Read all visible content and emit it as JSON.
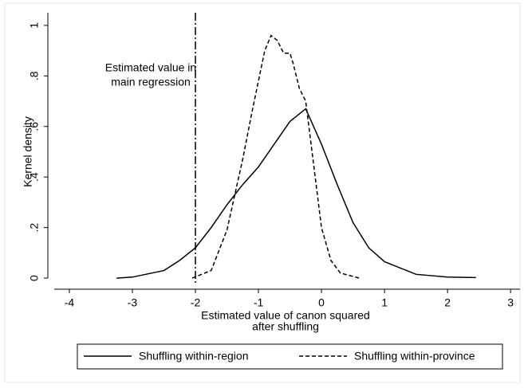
{
  "chart_data": {
    "type": "line",
    "ylabel": "Kernel density",
    "xlabel": [
      "Estimated value of canon squared",
      "after shuffling"
    ],
    "annotation": [
      "Estimated value in",
      "main regression"
    ],
    "xline": -2,
    "xlim": [
      -4.24,
      3.15
    ],
    "xticks": [
      -4,
      -3,
      -2,
      -1,
      0,
      1,
      2,
      3
    ],
    "ylim": [
      -0.025,
      1.05
    ],
    "yticks": [
      0,
      {
        "value": 0.2,
        "label": ".2"
      },
      {
        "value": 0.4,
        "label": ".4"
      },
      {
        "value": 0.6,
        "label": ".6"
      },
      {
        "value": 0.8,
        "label": ".8"
      },
      1
    ],
    "series": [
      {
        "name": "Shuffling within-region",
        "color": "#000000",
        "dash": "solid",
        "x": [
          -3.25,
          -3,
          -2.5,
          -2.25,
          -2,
          -1.75,
          -1.5,
          -1.25,
          -1,
          -0.75,
          -0.5,
          -0.25,
          0,
          0.25,
          0.5,
          0.75,
          1,
          1.5,
          2,
          2.45
        ],
        "values": [
          0,
          0.004,
          0.03,
          0.07,
          0.12,
          0.2,
          0.29,
          0.37,
          0.44,
          0.53,
          0.62,
          0.67,
          0.53,
          0.37,
          0.22,
          0.12,
          0.065,
          0.015,
          0.004,
          0.002
        ]
      },
      {
        "name": "Shuffling within-province",
        "color": "#000000",
        "dash": "dashed",
        "x": [
          -2.05,
          -1.75,
          -1.5,
          -1.25,
          -1.1,
          -1,
          -0.9,
          -0.8,
          -0.7,
          -0.6,
          -0.5,
          -0.45,
          -0.35,
          -0.25,
          -0.1,
          0,
          0.15,
          0.3,
          0.6
        ],
        "values": [
          0,
          0.03,
          0.19,
          0.47,
          0.66,
          0.78,
          0.9,
          0.96,
          0.94,
          0.89,
          0.89,
          0.85,
          0.75,
          0.7,
          0.4,
          0.2,
          0.07,
          0.02,
          0
        ]
      }
    ]
  }
}
